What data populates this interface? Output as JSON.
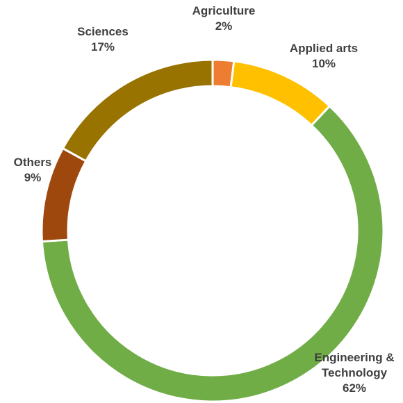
{
  "chart_data": {
    "type": "pie",
    "style": "donut",
    "title": "",
    "start_angle_deg": 0,
    "direction": "clockwise",
    "slices": [
      {
        "category": "Agriculture",
        "value": 2,
        "label_lines": [
          "Agriculture",
          "2%"
        ],
        "color": "#ED7D31"
      },
      {
        "category": "Applied arts",
        "value": 10,
        "label_lines": [
          "Applied arts",
          "10%"
        ],
        "color": "#FFC000"
      },
      {
        "category": "Engineering & Technology",
        "value": 62,
        "label_lines": [
          "Engineering &",
          "Technology",
          "62%"
        ],
        "color": "#70AD47"
      },
      {
        "category": "Others",
        "value": 9,
        "label_lines": [
          "Others",
          "9%"
        ],
        "color": "#9E480E"
      },
      {
        "category": "Sciences",
        "value": 17,
        "label_lines": [
          "Sciences",
          "17%"
        ],
        "color": "#997300"
      }
    ]
  }
}
